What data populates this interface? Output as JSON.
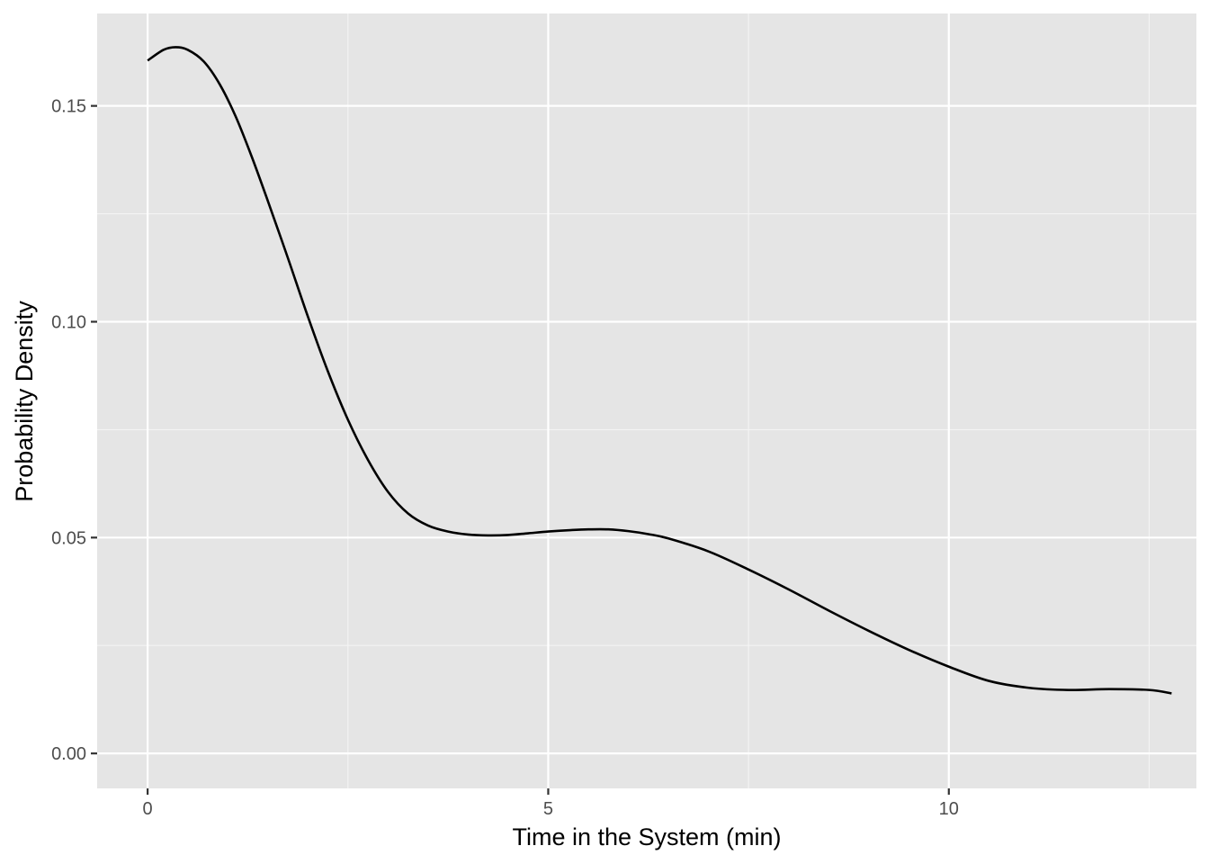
{
  "chart_data": {
    "type": "line",
    "title": "",
    "xlabel": "Time in the System (min)",
    "ylabel": "Probability Density",
    "xlim": [
      -0.63,
      13.09
    ],
    "ylim": [
      -0.0081,
      0.1714
    ],
    "x_ticks": [
      {
        "value": 0,
        "label": "0"
      },
      {
        "value": 5,
        "label": "5"
      },
      {
        "value": 10,
        "label": "10"
      }
    ],
    "x_minor": [
      2.5,
      7.5,
      12.5
    ],
    "y_ticks": [
      {
        "value": 0,
        "label": "0.00"
      },
      {
        "value": 0.05,
        "label": "0.05"
      },
      {
        "value": 0.1,
        "label": "0.10"
      },
      {
        "value": 0.15,
        "label": "0.15"
      }
    ],
    "y_minor": [
      0.025,
      0.075,
      0.125
    ],
    "grid": true,
    "series": [
      {
        "color": "#000000",
        "x": [
          0,
          0.2,
          0.35,
          0.5,
          0.7,
          0.9,
          1.1,
          1.3,
          1.5,
          1.75,
          2.0,
          2.25,
          2.5,
          2.75,
          3.0,
          3.25,
          3.5,
          3.75,
          4.0,
          4.25,
          4.5,
          4.75,
          5.0,
          5.25,
          5.5,
          5.75,
          6.0,
          6.25,
          6.5,
          7.0,
          7.5,
          8.0,
          8.5,
          9.0,
          9.5,
          10.0,
          10.5,
          11.0,
          11.5,
          12.0,
          12.5,
          12.78
        ],
        "y": [
          0.1605,
          0.163,
          0.1636,
          0.163,
          0.1603,
          0.155,
          0.1475,
          0.1382,
          0.128,
          0.1148,
          0.1012,
          0.0885,
          0.0773,
          0.068,
          0.0606,
          0.0556,
          0.0528,
          0.0514,
          0.0507,
          0.0505,
          0.0506,
          0.051,
          0.0514,
          0.0517,
          0.0519,
          0.0519,
          0.0515,
          0.0508,
          0.0498,
          0.0468,
          0.0426,
          0.038,
          0.0331,
          0.0284,
          0.024,
          0.0201,
          0.0168,
          0.0152,
          0.0147,
          0.0149,
          0.0147,
          0.0139
        ]
      }
    ]
  }
}
